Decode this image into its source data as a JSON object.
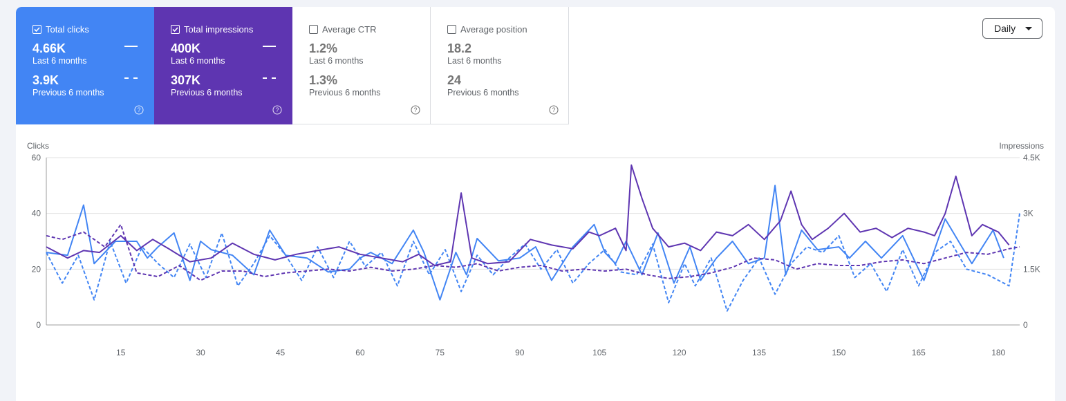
{
  "cards": [
    {
      "id": "clicks",
      "label": "Total clicks",
      "checked": true,
      "current_value": "4.66K",
      "current_period": "Last 6 months",
      "previous_value": "3.9K",
      "previous_period": "Previous 6 months"
    },
    {
      "id": "impressions",
      "label": "Total impressions",
      "checked": true,
      "current_value": "400K",
      "current_period": "Last 6 months",
      "previous_value": "307K",
      "previous_period": "Previous 6 months"
    },
    {
      "id": "ctr",
      "label": "Average CTR",
      "checked": false,
      "current_value": "1.2%",
      "current_period": "Last 6 months",
      "previous_value": "1.3%",
      "previous_period": "Previous 6 months"
    },
    {
      "id": "position",
      "label": "Average position",
      "checked": false,
      "current_value": "18.2",
      "current_period": "Last 6 months",
      "previous_value": "24",
      "previous_period": "Previous 6 months"
    }
  ],
  "granularity": {
    "selected": "Daily"
  },
  "colors": {
    "clicks": "#4285f4",
    "impressions": "#5e35b1",
    "grid": "#e0e0e0",
    "axis_text": "#5f6368"
  },
  "chart_data": {
    "type": "line",
    "y_left_label": "Clicks",
    "y_right_label": "Impressions",
    "y_left_range": [
      0,
      60
    ],
    "y_right_range": [
      0,
      4500
    ],
    "y_left_ticks": [
      "0",
      "20",
      "40",
      "60"
    ],
    "y_right_ticks": [
      "0",
      "1.5K",
      "3K",
      "4.5K"
    ],
    "x_range": [
      1,
      184
    ],
    "x_ticks": [
      15,
      30,
      45,
      60,
      75,
      90,
      105,
      120,
      135,
      150,
      165,
      180
    ],
    "grid": true,
    "series": [
      {
        "name": "Total clicks",
        "period": "Last 6 months",
        "axis": "left",
        "style": "solid",
        "color": "#4285f4",
        "x": [
          1,
          5,
          8,
          10,
          14,
          18,
          20,
          22,
          25,
          28,
          30,
          32,
          36,
          40,
          43,
          46,
          50,
          54,
          58,
          60,
          62,
          66,
          70,
          72,
          75,
          78,
          80,
          82,
          86,
          90,
          93,
          96,
          100,
          104,
          106,
          108,
          110,
          113,
          116,
          119,
          122,
          124,
          127,
          130,
          133,
          136,
          138,
          140,
          143,
          146,
          150,
          152,
          155,
          158,
          162,
          166,
          170,
          175,
          179,
          181
        ],
        "y": [
          26,
          25,
          43,
          22,
          30,
          30,
          24,
          28,
          33,
          16,
          30,
          27,
          25,
          18,
          34,
          25,
          24,
          19,
          20,
          24,
          26,
          22,
          34,
          26,
          9,
          26,
          18,
          31,
          23,
          24,
          28,
          16,
          28,
          36,
          26,
          22,
          30,
          18,
          33,
          15,
          28,
          16,
          24,
          30,
          22,
          24,
          50,
          18,
          34,
          27,
          28,
          24,
          30,
          24,
          32,
          16,
          38,
          22,
          34,
          24
        ]
      },
      {
        "name": "Total clicks",
        "period": "Previous 6 months",
        "axis": "left",
        "style": "dashed",
        "color": "#4285f4",
        "x": [
          1,
          4,
          7,
          10,
          13,
          16,
          19,
          22,
          25,
          28,
          31,
          34,
          37,
          40,
          43,
          46,
          49,
          52,
          55,
          58,
          61,
          64,
          67,
          70,
          73,
          76,
          79,
          82,
          85,
          88,
          91,
          94,
          97,
          100,
          103,
          106,
          109,
          112,
          115,
          118,
          121,
          123,
          126,
          129,
          132,
          135,
          138,
          141,
          144,
          147,
          150,
          153,
          156,
          159,
          162,
          165,
          168,
          171,
          174,
          178,
          182,
          184
        ],
        "y": [
          26,
          15,
          25,
          9,
          30,
          15,
          28,
          22,
          17,
          29,
          17,
          33,
          14,
          22,
          32,
          25,
          16,
          28,
          17,
          30,
          21,
          26,
          14,
          30,
          18,
          27,
          12,
          25,
          18,
          24,
          29,
          20,
          27,
          15,
          22,
          27,
          19,
          18,
          29,
          8,
          22,
          14,
          24,
          5,
          16,
          24,
          11,
          22,
          28,
          26,
          32,
          17,
          22,
          12,
          27,
          14,
          26,
          30,
          20,
          18,
          14,
          40
        ]
      },
      {
        "name": "Total impressions",
        "period": "Last 6 months",
        "axis": "right",
        "style": "solid",
        "color": "#5e35b1",
        "x": [
          1,
          5,
          8,
          11,
          15,
          18,
          21,
          24,
          28,
          32,
          36,
          40,
          44,
          48,
          52,
          56,
          60,
          64,
          68,
          71,
          74,
          77,
          79,
          81,
          84,
          88,
          92,
          96,
          100,
          103,
          105,
          108,
          110,
          111,
          113,
          115,
          118,
          121,
          124,
          127,
          130,
          133,
          136,
          139,
          141,
          143,
          145,
          148,
          151,
          154,
          157,
          160,
          163,
          166,
          168,
          170,
          172,
          175,
          177,
          180,
          182
        ],
        "y": [
          2100,
          1800,
          2000,
          1950,
          2400,
          2000,
          2300,
          2050,
          1700,
          1800,
          2200,
          1900,
          1750,
          1900,
          2000,
          2100,
          1900,
          1800,
          1700,
          1900,
          1600,
          1700,
          3550,
          1800,
          1650,
          1700,
          2300,
          2150,
          2050,
          2500,
          2400,
          2600,
          2000,
          4300,
          3400,
          2600,
          2100,
          2200,
          2000,
          2500,
          2400,
          2700,
          2300,
          2800,
          3600,
          2700,
          2300,
          2600,
          3000,
          2500,
          2600,
          2350,
          2600,
          2500,
          2400,
          3000,
          4000,
          2400,
          2700,
          2500,
          2150
        ]
      },
      {
        "name": "Total impressions",
        "period": "Previous 6 months",
        "axis": "right",
        "style": "dashed",
        "color": "#5e35b1",
        "x": [
          1,
          4,
          8,
          12,
          15,
          18,
          22,
          26,
          30,
          34,
          38,
          42,
          46,
          50,
          54,
          58,
          62,
          66,
          70,
          74,
          78,
          82,
          86,
          90,
          94,
          98,
          102,
          106,
          110,
          114,
          118,
          122,
          126,
          130,
          134,
          138,
          142,
          146,
          150,
          154,
          158,
          162,
          166,
          170,
          174,
          178,
          182,
          184
        ],
        "y": [
          2400,
          2300,
          2500,
          2100,
          2700,
          1400,
          1300,
          1600,
          1200,
          1450,
          1450,
          1300,
          1400,
          1450,
          1500,
          1450,
          1550,
          1450,
          1500,
          1600,
          1550,
          1650,
          1450,
          1550,
          1600,
          1450,
          1500,
          1450,
          1500,
          1350,
          1250,
          1300,
          1400,
          1550,
          1800,
          1750,
          1500,
          1650,
          1600,
          1600,
          1700,
          1750,
          1650,
          1800,
          1950,
          1900,
          2050,
          2100
        ]
      }
    ]
  }
}
